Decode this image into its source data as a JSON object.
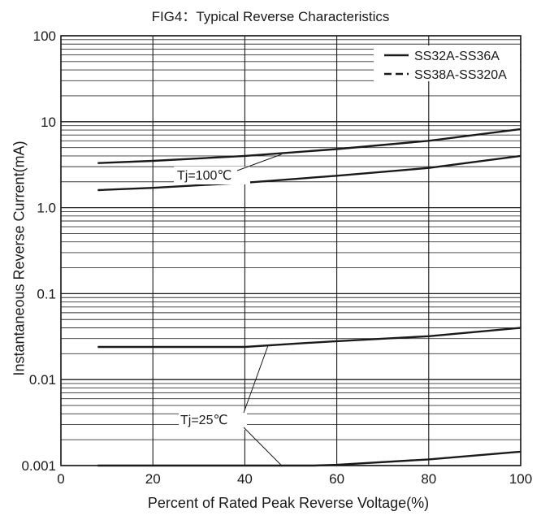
{
  "chart_data": {
    "type": "line",
    "title": "FIG4：Typical Reverse Characteristics",
    "xlabel": "Percent of Rated Peak Reverse Voltage(%)",
    "ylabel": "Instantaneous Reverse Current(mA)",
    "xlim": [
      0,
      100
    ],
    "ylim": [
      0.001,
      100
    ],
    "yscale": "log",
    "grid": true,
    "legend_position": "top-right",
    "x_ticks": [
      "0",
      "20",
      "40",
      "60",
      "80",
      "100"
    ],
    "y_ticks": [
      "0.001",
      "0.01",
      "0.1",
      "1.0",
      "10",
      "100"
    ],
    "legend": [
      {
        "label": "SS32A-SS36A",
        "style": "solid"
      },
      {
        "label": "SS38A-SS320A",
        "style": "dashed"
      }
    ],
    "annotations": [
      "Tj=100℃",
      "Tj=25℃"
    ],
    "series": [
      {
        "group": "Tj=100℃",
        "x": [
          8,
          20,
          40,
          60,
          80,
          100
        ],
        "y": [
          3.3,
          3.5,
          4.0,
          4.8,
          6.0,
          8.2
        ]
      },
      {
        "group": "Tj=100℃",
        "x": [
          8,
          20,
          40,
          60,
          80,
          100
        ],
        "y": [
          1.6,
          1.7,
          1.95,
          2.35,
          2.9,
          4.0
        ]
      },
      {
        "group": "Tj=25℃",
        "x": [
          8,
          20,
          40,
          50,
          60,
          80,
          100
        ],
        "y": [
          0.024,
          0.024,
          0.024,
          0.026,
          0.028,
          0.032,
          0.04
        ]
      },
      {
        "group": "Tj=25℃",
        "x": [
          8,
          20,
          40,
          55,
          60,
          80,
          100
        ],
        "y": [
          0.001,
          0.001,
          0.001,
          0.001,
          0.00102,
          0.00118,
          0.00145
        ]
      }
    ],
    "line_color": "#1a1a1a"
  }
}
